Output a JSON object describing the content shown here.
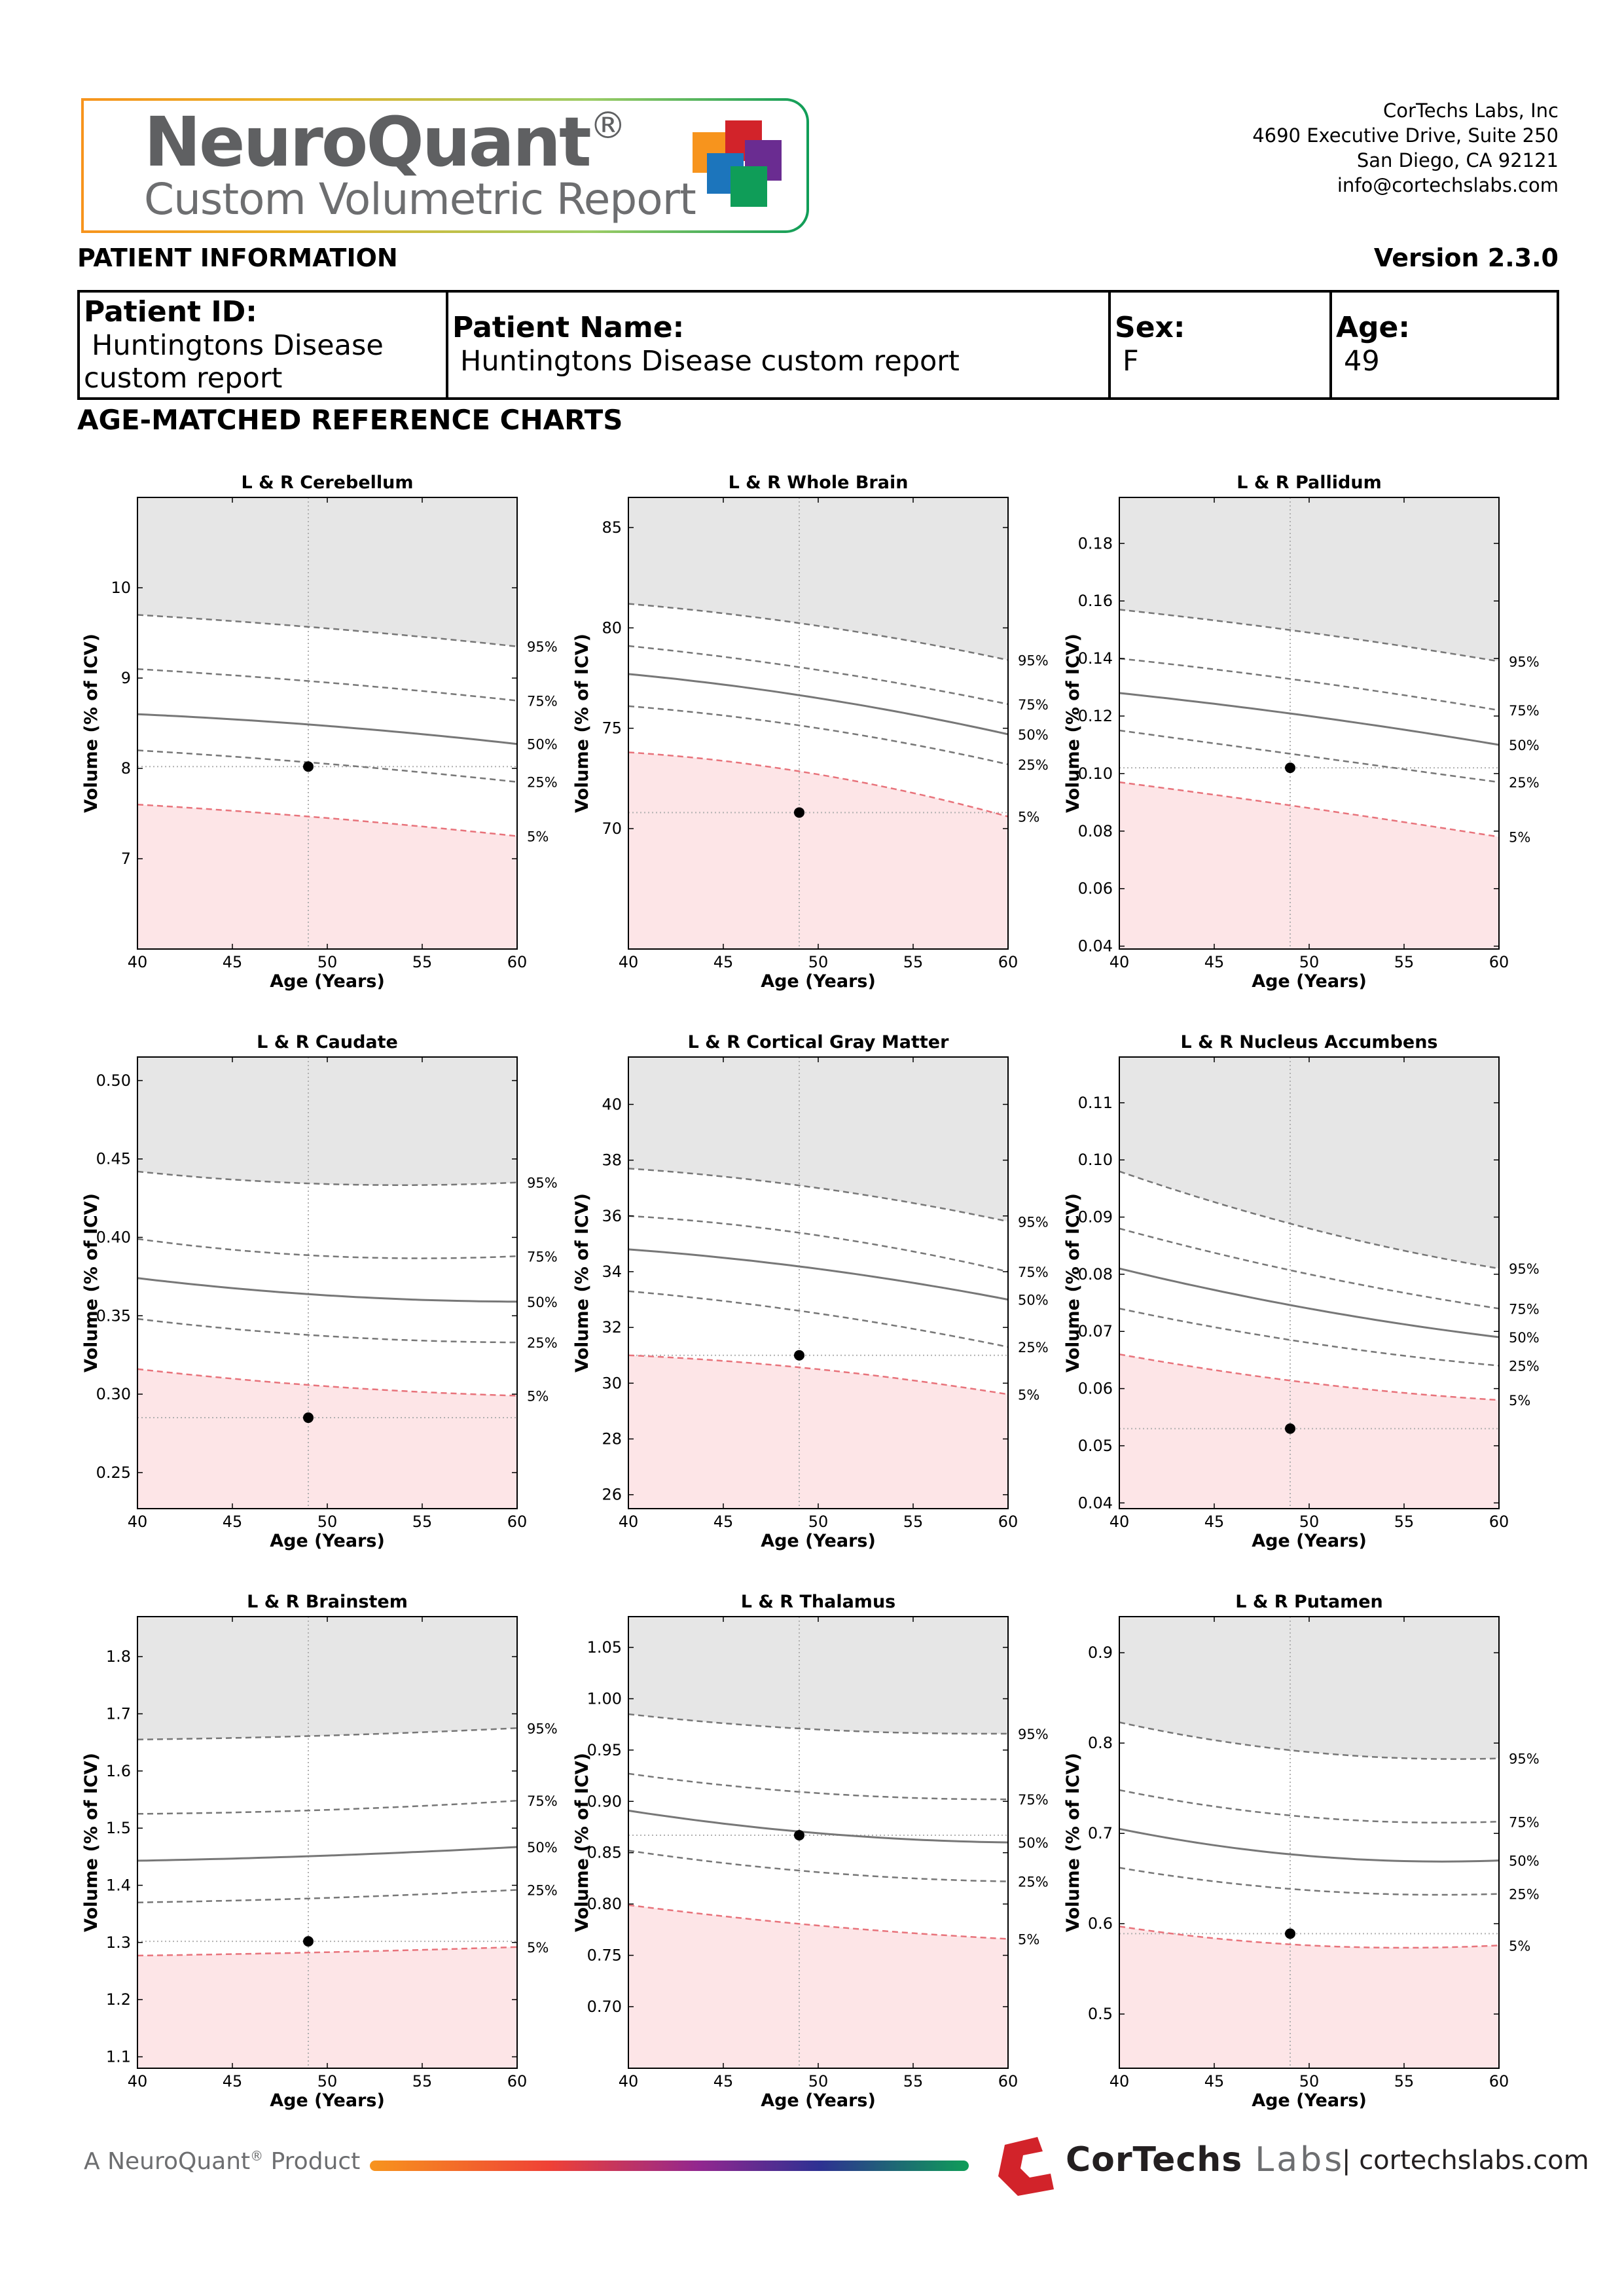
{
  "logo": {
    "title": "NeuroQuant",
    "reg": "®",
    "subtitle": "Custom Volumetric Report"
  },
  "company": {
    "name": "CorTechs Labs, Inc",
    "address1": "4690 Executive Drive, Suite 250",
    "address2": "San Diego, CA 92121",
    "email": "info@cortechslabs.com"
  },
  "patient_section_label": "PATIENT INFORMATION",
  "version": "Version 2.3.0",
  "patient": {
    "id_label": "Patient ID:",
    "id_value": "Huntingtons Disease",
    "id_value_cont": "custom report",
    "name_label": "Patient Name:",
    "name_value": "Huntingtons Disease custom report",
    "sex_label": "Sex:",
    "sex_value": "F",
    "age_label": "Age:",
    "age_value": "49"
  },
  "charts_section_label": "AGE-MATCHED REFERENCE CHARTS",
  "colors": {
    "normal_shade": "#e6e6e6",
    "low_shade": "#fde5e7",
    "low_line": "#e8737b",
    "curve": "#777777",
    "dashed": "#777777",
    "point": "#000000"
  },
  "chart_data": [
    {
      "type": "line",
      "title": "L & R Cerebellum",
      "xlabel": "Age (Years)",
      "ylabel": "Volume (% of ICV)",
      "xlim": [
        40,
        60
      ],
      "ylim": [
        6.0,
        11.0
      ],
      "xticks": [
        40,
        45,
        50,
        55,
        60
      ],
      "yticks": [
        7,
        8,
        9,
        10
      ],
      "yfmt": 0,
      "percentiles": [
        {
          "name": "95%",
          "y": [
            9.7,
            9.55,
            9.35
          ]
        },
        {
          "name": "75%",
          "y": [
            9.1,
            8.95,
            8.75
          ]
        },
        {
          "name": "50%",
          "y": [
            8.6,
            8.47,
            8.27
          ]
        },
        {
          "name": "25%",
          "y": [
            8.2,
            8.05,
            7.85
          ]
        },
        {
          "name": "5%",
          "y": [
            7.6,
            7.45,
            7.25
          ]
        }
      ],
      "patient_point": {
        "x": 49,
        "y": 8.02
      }
    },
    {
      "type": "line",
      "title": "L & R Whole Brain",
      "xlabel": "Age (Years)",
      "ylabel": "Volume (% of ICV)",
      "xlim": [
        40,
        60
      ],
      "ylim": [
        64.0,
        86.5
      ],
      "xticks": [
        40,
        45,
        50,
        55,
        60
      ],
      "yticks": [
        70,
        75,
        80,
        85
      ],
      "yfmt": 0,
      "percentiles": [
        {
          "name": "95%",
          "y": [
            81.2,
            80.1,
            78.4
          ]
        },
        {
          "name": "75%",
          "y": [
            79.1,
            77.9,
            76.2
          ]
        },
        {
          "name": "50%",
          "y": [
            77.7,
            76.5,
            74.7
          ]
        },
        {
          "name": "25%",
          "y": [
            76.1,
            75.0,
            73.2
          ]
        },
        {
          "name": "5%",
          "y": [
            73.8,
            72.7,
            70.6
          ]
        }
      ],
      "patient_point": {
        "x": 49,
        "y": 70.8
      }
    },
    {
      "type": "line",
      "title": "L & R Pallidum",
      "xlabel": "Age (Years)",
      "ylabel": "Volume (% of ICV)",
      "xlim": [
        40,
        60
      ],
      "ylim": [
        0.039,
        0.196
      ],
      "xticks": [
        40,
        45,
        50,
        55,
        60
      ],
      "yticks": [
        0.04,
        0.06,
        0.08,
        0.1,
        0.12,
        0.14,
        0.16,
        0.18
      ],
      "yfmt": 2,
      "percentiles": [
        {
          "name": "95%",
          "y": [
            0.157,
            0.149,
            0.139
          ]
        },
        {
          "name": "75%",
          "y": [
            0.14,
            0.132,
            0.122
          ]
        },
        {
          "name": "50%",
          "y": [
            0.128,
            0.12,
            0.11
          ]
        },
        {
          "name": "25%",
          "y": [
            0.115,
            0.106,
            0.097
          ]
        },
        {
          "name": "5%",
          "y": [
            0.097,
            0.088,
            0.078
          ]
        }
      ],
      "patient_point": {
        "x": 49,
        "y": 0.102
      }
    },
    {
      "type": "line",
      "title": "L & R Caudate",
      "xlabel": "Age (Years)",
      "ylabel": "Volume (% of ICV)",
      "xlim": [
        40,
        60
      ],
      "ylim": [
        0.227,
        0.515
      ],
      "xticks": [
        40,
        45,
        50,
        55,
        60
      ],
      "yticks": [
        0.25,
        0.3,
        0.35,
        0.4,
        0.45,
        0.5
      ],
      "yfmt": 2,
      "percentiles": [
        {
          "name": "95%",
          "y": [
            0.442,
            0.434,
            0.435
          ]
        },
        {
          "name": "75%",
          "y": [
            0.399,
            0.388,
            0.388
          ]
        },
        {
          "name": "50%",
          "y": [
            0.374,
            0.363,
            0.359
          ]
        },
        {
          "name": "25%",
          "y": [
            0.348,
            0.337,
            0.333
          ]
        },
        {
          "name": "5%",
          "y": [
            0.316,
            0.305,
            0.299
          ]
        }
      ],
      "patient_point": {
        "x": 49,
        "y": 0.285
      }
    },
    {
      "type": "line",
      "title": "L & R Cortical Gray Matter",
      "xlabel": "Age (Years)",
      "ylabel": "Volume (% of ICV)",
      "xlim": [
        40,
        60
      ],
      "ylim": [
        25.5,
        41.7
      ],
      "xticks": [
        40,
        45,
        50,
        55,
        60
      ],
      "yticks": [
        26,
        28,
        30,
        32,
        34,
        36,
        38,
        40
      ],
      "yfmt": 0,
      "percentiles": [
        {
          "name": "95%",
          "y": [
            37.7,
            37.0,
            35.8
          ]
        },
        {
          "name": "75%",
          "y": [
            36.0,
            35.3,
            34.0
          ]
        },
        {
          "name": "50%",
          "y": [
            34.8,
            34.1,
            33.0
          ]
        },
        {
          "name": "25%",
          "y": [
            33.3,
            32.5,
            31.3
          ]
        },
        {
          "name": "5%",
          "y": [
            31.0,
            30.5,
            29.6
          ]
        }
      ],
      "patient_point": {
        "x": 49,
        "y": 31.0
      }
    },
    {
      "type": "line",
      "title": "L & R Nucleus Accumbens",
      "xlabel": "Age (Years)",
      "ylabel": "Volume (% of ICV)",
      "xlim": [
        40,
        60
      ],
      "ylim": [
        0.039,
        0.118
      ],
      "xticks": [
        40,
        45,
        50,
        55,
        60
      ],
      "yticks": [
        0.04,
        0.05,
        0.06,
        0.07,
        0.08,
        0.09,
        0.1,
        0.11
      ],
      "yfmt": 2,
      "percentiles": [
        {
          "name": "95%",
          "y": [
            0.098,
            0.088,
            0.081
          ]
        },
        {
          "name": "75%",
          "y": [
            0.088,
            0.08,
            0.074
          ]
        },
        {
          "name": "50%",
          "y": [
            0.081,
            0.074,
            0.069
          ]
        },
        {
          "name": "25%",
          "y": [
            0.074,
            0.068,
            0.064
          ]
        },
        {
          "name": "5%",
          "y": [
            0.066,
            0.061,
            0.058
          ]
        }
      ],
      "patient_point": {
        "x": 49,
        "y": 0.053
      }
    },
    {
      "type": "line",
      "title": "L & R Brainstem",
      "xlabel": "Age (Years)",
      "ylabel": "Volume (% of ICV)",
      "xlim": [
        40,
        60
      ],
      "ylim": [
        1.08,
        1.87
      ],
      "xticks": [
        40,
        45,
        50,
        55,
        60
      ],
      "yticks": [
        1.1,
        1.2,
        1.3,
        1.4,
        1.5,
        1.6,
        1.7,
        1.8
      ],
      "yfmt": 1,
      "percentiles": [
        {
          "name": "95%",
          "y": [
            1.655,
            1.662,
            1.675
          ]
        },
        {
          "name": "75%",
          "y": [
            1.525,
            1.532,
            1.548
          ]
        },
        {
          "name": "50%",
          "y": [
            1.443,
            1.452,
            1.467
          ]
        },
        {
          "name": "25%",
          "y": [
            1.37,
            1.378,
            1.392
          ]
        },
        {
          "name": "5%",
          "y": [
            1.277,
            1.283,
            1.292
          ]
        }
      ],
      "patient_point": {
        "x": 49,
        "y": 1.302
      }
    },
    {
      "type": "line",
      "title": "L & R Thalamus",
      "xlabel": "Age (Years)",
      "ylabel": "Volume (% of ICV)",
      "xlim": [
        40,
        60
      ],
      "ylim": [
        0.64,
        1.08
      ],
      "xticks": [
        40,
        45,
        50,
        55,
        60
      ],
      "yticks": [
        0.7,
        0.75,
        0.8,
        0.85,
        0.9,
        0.95,
        1.0,
        1.05
      ],
      "yfmt": 2,
      "percentiles": [
        {
          "name": "95%",
          "y": [
            0.985,
            0.97,
            0.966
          ]
        },
        {
          "name": "75%",
          "y": [
            0.927,
            0.908,
            0.902
          ]
        },
        {
          "name": "50%",
          "y": [
            0.891,
            0.869,
            0.86
          ]
        },
        {
          "name": "25%",
          "y": [
            0.852,
            0.831,
            0.822
          ]
        },
        {
          "name": "5%",
          "y": [
            0.799,
            0.779,
            0.766
          ]
        }
      ],
      "patient_point": {
        "x": 49,
        "y": 0.867
      }
    },
    {
      "type": "line",
      "title": "L & R Putamen",
      "xlabel": "Age (Years)",
      "ylabel": "Volume (% of ICV)",
      "xlim": [
        40,
        60
      ],
      "ylim": [
        0.44,
        0.94
      ],
      "xticks": [
        40,
        45,
        50,
        55,
        60
      ],
      "yticks": [
        0.5,
        0.6,
        0.7,
        0.8,
        0.9
      ],
      "yfmt": 1,
      "percentiles": [
        {
          "name": "95%",
          "y": [
            0.823,
            0.79,
            0.783
          ]
        },
        {
          "name": "75%",
          "y": [
            0.748,
            0.718,
            0.713
          ]
        },
        {
          "name": "50%",
          "y": [
            0.705,
            0.675,
            0.67
          ]
        },
        {
          "name": "25%",
          "y": [
            0.662,
            0.637,
            0.633
          ]
        },
        {
          "name": "5%",
          "y": [
            0.597,
            0.576,
            0.576
          ]
        }
      ],
      "patient_point": {
        "x": 49,
        "y": 0.589
      }
    }
  ],
  "footer": {
    "product": "A NeuroQuant",
    "product_reg": "®",
    "product_tail": " Product",
    "brand_a": "CorTechs ",
    "brand_b": "Labs",
    "url": "| cortechslabs.com"
  }
}
